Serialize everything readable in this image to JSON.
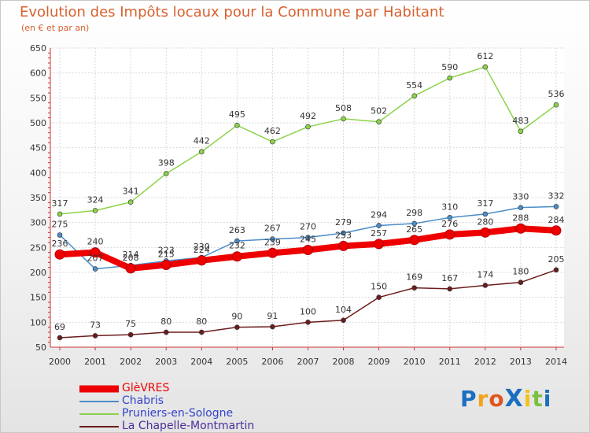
{
  "title": "Evolution des Impôts locaux pour la Commune par Habitant",
  "subtitle": "(en € et par an)",
  "chart_data": {
    "type": "line",
    "x": [
      "2000",
      "2001",
      "2002",
      "2003",
      "2004",
      "2005",
      "2006",
      "2007",
      "2008",
      "2009",
      "2010",
      "2011",
      "2012",
      "2013",
      "2014"
    ],
    "ylim": [
      50,
      650
    ],
    "yticks": [
      50,
      100,
      150,
      200,
      250,
      300,
      350,
      400,
      450,
      500,
      550,
      600,
      650
    ],
    "grid": true,
    "legend_position": "bottom-left",
    "series": [
      {
        "name": "GlèVRES",
        "color": "#ee0000",
        "values": [
          236,
          240,
          208,
          215,
          224,
          232,
          239,
          245,
          253,
          257,
          265,
          276,
          280,
          288,
          284
        ],
        "labels": [
          "236",
          "240",
          "208",
          "215",
          "224",
          "232",
          "239",
          "245",
          "253",
          "257",
          "265",
          "276",
          "280",
          "288",
          "284"
        ]
      },
      {
        "name": "Chabris",
        "color": "#4a8cc8",
        "values": [
          275,
          207,
          214,
          223,
          230,
          263,
          267,
          270,
          279,
          294,
          298,
          310,
          317,
          330,
          332
        ],
        "labels": [
          "275",
          "207",
          "214",
          "223",
          "230",
          "263",
          "267",
          "270",
          "279",
          "294",
          "298",
          "310",
          "317",
          "330",
          "332"
        ]
      },
      {
        "name": "Pruniers-en-Sologne",
        "color": "#8cd24a",
        "values": [
          317,
          324,
          341,
          398,
          442,
          495,
          462,
          492,
          508,
          502,
          554,
          590,
          612,
          483,
          536
        ],
        "labels": [
          "317",
          "324",
          "341",
          "398",
          "442",
          "495",
          "462",
          "492",
          "508",
          "502",
          "554",
          "590",
          "612",
          "483",
          "536"
        ]
      },
      {
        "name": "La Chapelle-Montmartin",
        "color": "#6b1c1c",
        "values": [
          69,
          73,
          75,
          80,
          80,
          90,
          91,
          100,
          104,
          150,
          169,
          167,
          174,
          180,
          205
        ],
        "labels": [
          "69",
          "73",
          "75",
          "80",
          "80",
          "90",
          "91",
          "100",
          "104",
          "150",
          "169",
          "167",
          "174",
          "180",
          "205"
        ]
      }
    ]
  },
  "logo": {
    "text": "ProXiti",
    "letter_colors": [
      "#1b6fc0",
      "#f2a31b",
      "#e0561e",
      "#1b6fc0",
      "#f2c21b",
      "#7ac142",
      "#1b6fc0"
    ]
  }
}
